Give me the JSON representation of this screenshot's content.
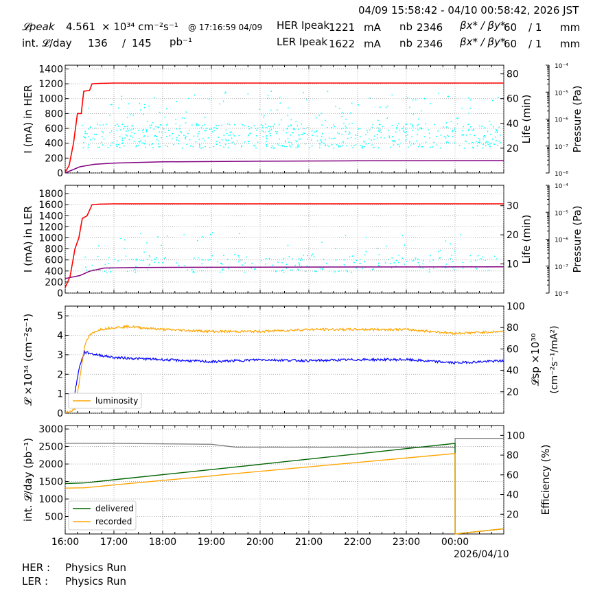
{
  "header": {
    "date_range": "04/09 15:58:42 - 04/10 00:58:42, 2026 JST",
    "lpeak_label": "𝓛peak",
    "lpeak_value": "4.561",
    "lpeak_unit": "× 10³⁴ cm⁻²s⁻¹",
    "lpeak_time": "@ 17:16:59 04/09",
    "intl_label": "int. 𝓛/day",
    "intl_value": "136",
    "intl_sep": "/",
    "intl_total": "145",
    "intl_unit": "pb⁻¹",
    "her_label": "HER Ipeak",
    "her_value": "1221",
    "ler_label": "LER Ipeak",
    "ler_value": "1622",
    "current_unit": "mA",
    "nb_label": "nb",
    "her_nb": "2346",
    "ler_nb": "2346",
    "beta_label": "βx* / βy*",
    "her_beta_x": "60",
    "her_beta_y": "/ 1",
    "ler_beta_x": "60",
    "ler_beta_y": "/ 1",
    "beta_unit": "mm"
  },
  "footer": {
    "her_label": "HER :",
    "her_status": "Physics Run",
    "ler_label": "LER :",
    "ler_status": "Physics Run"
  },
  "colors": {
    "current": "#ff0000",
    "life": "#00ffff",
    "pressure": "#800080",
    "luminosity": "#ffa500",
    "specific": "#0000ff",
    "delivered": "#006400",
    "recorded": "#ffa500",
    "efficiency": "#808080"
  },
  "chart_data": [
    {
      "type": "line",
      "id": "her",
      "ylabel": "I (mA) in HER",
      "ylabel2": "Life (min)",
      "ylabel3": "Pressure (Pa)",
      "ylim": [
        0,
        1450
      ],
      "yticks": [
        0,
        200,
        400,
        600,
        800,
        1000,
        1200,
        1400
      ],
      "y2lim": [
        0,
        87
      ],
      "y2ticks": [
        20,
        40,
        60,
        80
      ],
      "y3log": [
        -8,
        -4
      ],
      "y3ticks": [
        "10⁻⁸",
        "10⁻⁷",
        "10⁻⁶",
        "10⁻⁵",
        "10⁻⁴"
      ],
      "xlim": [
        16.0,
        25.0
      ],
      "current": [
        [
          16.0,
          10
        ],
        [
          16.08,
          100
        ],
        [
          16.17,
          400
        ],
        [
          16.25,
          800
        ],
        [
          16.33,
          800
        ],
        [
          16.38,
          1100
        ],
        [
          16.5,
          1110
        ],
        [
          16.55,
          1200
        ],
        [
          16.7,
          1205
        ],
        [
          17.0,
          1210
        ],
        [
          20.0,
          1210
        ],
        [
          25.0,
          1210
        ]
      ],
      "pressure_axis": [
        [
          16.0,
          0
        ],
        [
          16.3,
          5
        ],
        [
          16.6,
          7
        ],
        [
          17.0,
          8
        ],
        [
          18.0,
          9
        ],
        [
          20.0,
          9.5
        ],
        [
          22.0,
          9.8
        ],
        [
          25.0,
          10
        ]
      ],
      "life_band": [
        20,
        40
      ]
    },
    {
      "type": "line",
      "id": "ler",
      "ylabel": "I (mA) in LER",
      "ylabel2": "Life (min)",
      "ylabel3": "Pressure (Pa)",
      "ylim": [
        0,
        1950
      ],
      "yticks": [
        0,
        200,
        400,
        600,
        800,
        1000,
        1200,
        1400,
        1600,
        1800
      ],
      "y2lim": [
        0,
        37
      ],
      "y2ticks": [
        10,
        20,
        30
      ],
      "y3log": [
        -8,
        -4
      ],
      "y3ticks": [
        "10⁻⁸",
        "10⁻⁷",
        "10⁻⁶",
        "10⁻⁵",
        "10⁻⁴"
      ],
      "xlim": [
        16.0,
        25.0
      ],
      "current": [
        [
          16.0,
          100
        ],
        [
          16.1,
          300
        ],
        [
          16.2,
          800
        ],
        [
          16.28,
          1000
        ],
        [
          16.35,
          1350
        ],
        [
          16.45,
          1400
        ],
        [
          16.55,
          1600
        ],
        [
          16.7,
          1610
        ],
        [
          17.0,
          1615
        ],
        [
          25.0,
          1615
        ]
      ],
      "pressure_axis": [
        [
          16.0,
          5
        ],
        [
          16.3,
          6
        ],
        [
          16.5,
          7.5
        ],
        [
          16.8,
          8.6
        ],
        [
          17.5,
          8.8
        ],
        [
          20.0,
          8.9
        ],
        [
          25.0,
          9
        ]
      ],
      "life_band": [
        7,
        13
      ]
    },
    {
      "type": "line",
      "id": "lum",
      "ylabel": "𝓛 ×10³⁴ (cm⁻²s⁻¹)",
      "ylabel2": "𝓛sp ×10³⁰",
      "ylabel2b": "(cm⁻²s⁻¹/mA²)",
      "ylim": [
        0,
        5.5
      ],
      "yticks": [
        0,
        1,
        2,
        3,
        4,
        5
      ],
      "y2lim": [
        0,
        100
      ],
      "y2ticks": [
        20,
        40,
        60,
        80,
        100
      ],
      "xlim": [
        16.0,
        25.0
      ],
      "legend": [
        "luminosity"
      ],
      "luminosity": [
        [
          16.0,
          0
        ],
        [
          16.2,
          0.2
        ],
        [
          16.3,
          1.8
        ],
        [
          16.4,
          3.5
        ],
        [
          16.5,
          4.0
        ],
        [
          16.7,
          4.3
        ],
        [
          17.0,
          4.4
        ],
        [
          17.3,
          4.45
        ],
        [
          18.0,
          4.3
        ],
        [
          19.0,
          4.2
        ],
        [
          20.0,
          4.2
        ],
        [
          21.0,
          4.3
        ],
        [
          22.0,
          4.3
        ],
        [
          23.0,
          4.3
        ],
        [
          24.0,
          4.1
        ],
        [
          25.0,
          4.2
        ]
      ],
      "specific": [
        [
          16.2,
          20
        ],
        [
          16.3,
          45
        ],
        [
          16.4,
          57
        ],
        [
          16.6,
          55
        ],
        [
          17.0,
          52
        ],
        [
          18.0,
          50
        ],
        [
          19.0,
          48
        ],
        [
          20.0,
          50
        ],
        [
          21.0,
          49
        ],
        [
          22.0,
          50
        ],
        [
          23.0,
          50
        ],
        [
          24.0,
          47
        ],
        [
          25.0,
          49
        ]
      ]
    },
    {
      "type": "line",
      "id": "int",
      "ylabel": "int. 𝓛/day (pb⁻¹)",
      "ylabel2": "Efficiency (%)",
      "ylim": [
        0,
        3100
      ],
      "yticks": [
        500,
        1000,
        1500,
        2000,
        2500,
        3000
      ],
      "y2lim": [
        0,
        110
      ],
      "y2ticks": [
        20,
        40,
        60,
        80,
        100
      ],
      "xlim": [
        16.0,
        25.0
      ],
      "xticks": [
        "16:00",
        "17:00",
        "18:00",
        "19:00",
        "20:00",
        "21:00",
        "22:00",
        "23:00",
        "00:00"
      ],
      "xdate": "2026/04/10",
      "legend": [
        "delivered",
        "recorded"
      ],
      "delivered": [
        [
          16.0,
          1440
        ],
        [
          16.4,
          1460
        ],
        [
          17.0,
          1550
        ],
        [
          19.0,
          1840
        ],
        [
          24.0,
          2590
        ],
        [
          24.001,
          0
        ],
        [
          25.0,
          150
        ]
      ],
      "recorded": [
        [
          16.0,
          1310
        ],
        [
          16.4,
          1320
        ],
        [
          17.0,
          1400
        ],
        [
          19.0,
          1660
        ],
        [
          19.2,
          1690
        ],
        [
          24.0,
          2300
        ],
        [
          24.001,
          0
        ],
        [
          25.0,
          150
        ]
      ],
      "efficiency": [
        [
          16.0,
          92
        ],
        [
          17.0,
          92
        ],
        [
          19.0,
          91
        ],
        [
          19.5,
          88
        ],
        [
          24.0,
          88
        ],
        [
          24.001,
          97
        ],
        [
          25.0,
          97
        ]
      ]
    }
  ]
}
